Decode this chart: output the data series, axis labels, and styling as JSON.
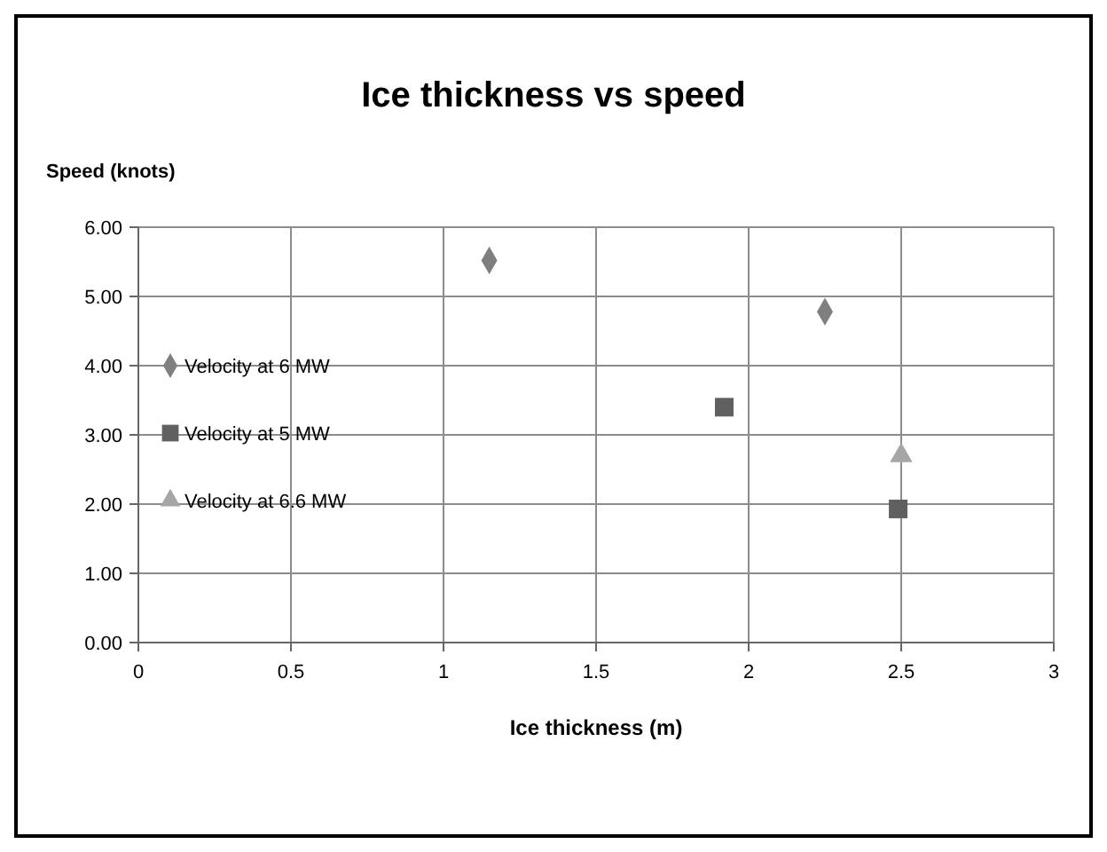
{
  "chart_data": {
    "type": "scatter",
    "title": "Ice thickness vs speed",
    "xlabel": "Ice thickness  (m)",
    "ylabel": "Speed (knots)",
    "xlim": [
      0,
      3
    ],
    "xticks": [
      0,
      0.5,
      1,
      1.5,
      2,
      2.5,
      3
    ],
    "ylim": [
      0,
      6
    ],
    "yticks": [
      {
        "value": 0,
        "label": "0.00"
      },
      {
        "value": 1,
        "label": "1.00"
      },
      {
        "value": 2,
        "label": "2.00"
      },
      {
        "value": 3,
        "label": "3.00"
      },
      {
        "value": 4,
        "label": "4.00"
      },
      {
        "value": 5,
        "label": "5.00"
      },
      {
        "value": 6,
        "label": "6.00"
      }
    ],
    "grid": true,
    "legend": "left",
    "series": [
      {
        "name": "Velocity at 6 MW",
        "color": "#7f7f7f",
        "marker": "diamond",
        "x": [
          1.15,
          2.25
        ],
        "values": [
          5.52,
          4.78
        ]
      },
      {
        "name": "Velocity at 5 MW",
        "color": "#606060",
        "marker": "square",
        "x": [
          1.92,
          2.49
        ],
        "values": [
          3.4,
          1.93
        ]
      },
      {
        "name": "Velocity at 6.6 MW",
        "color": "#a6a6a6",
        "marker": "triangle",
        "x": [
          2.5
        ],
        "values": [
          2.7
        ]
      }
    ]
  }
}
